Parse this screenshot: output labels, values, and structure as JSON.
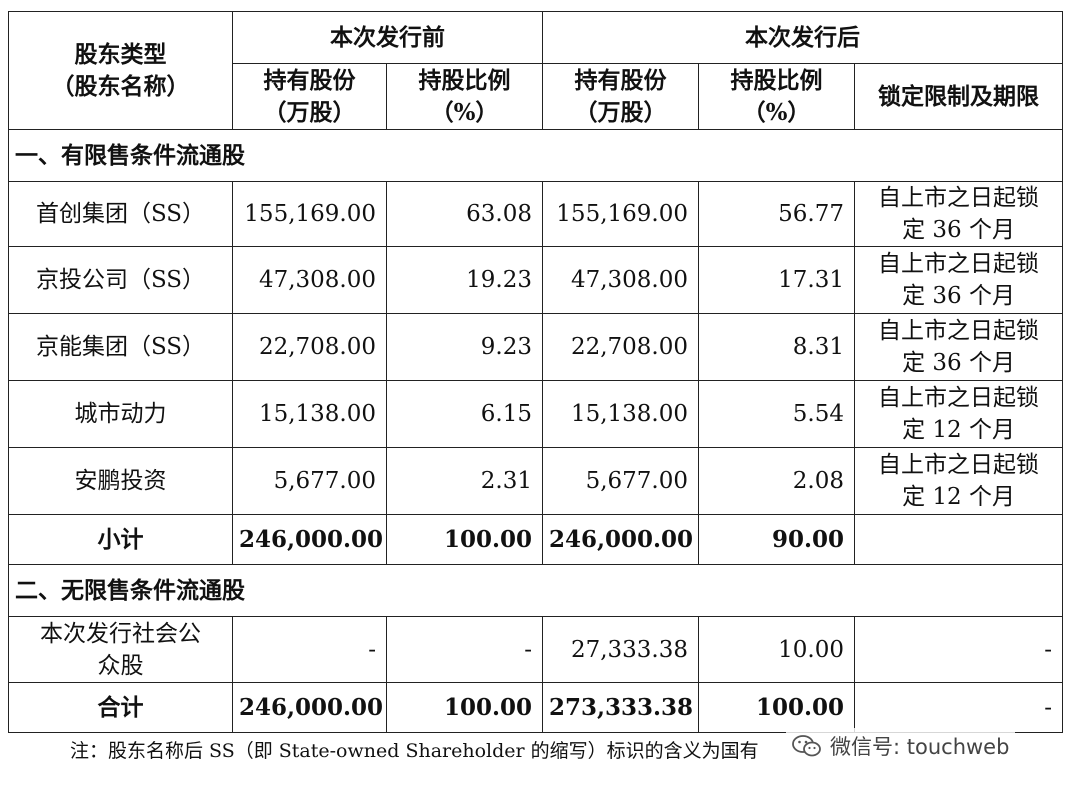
{
  "header": {
    "type_label": "股东类型\n（股东名称）",
    "before": "本次发行前",
    "after": "本次发行后",
    "shares": "持有股份\n（万股）",
    "ratio": "持股比例\n（%）",
    "lock": "锁定限制及期限"
  },
  "section1": "一、有限售条件流通股",
  "rows": [
    {
      "name": "首创集团（SS）",
      "shares_before": "155,169.00",
      "ratio_before": "63.08",
      "shares_after": "155,169.00",
      "ratio_after": "56.77",
      "lock": "自上市之日起锁\n定 36 个月"
    },
    {
      "name": "京投公司（SS）",
      "shares_before": "47,308.00",
      "ratio_before": "19.23",
      "shares_after": "47,308.00",
      "ratio_after": "17.31",
      "lock": "自上市之日起锁\n定 36 个月"
    },
    {
      "name": "京能集团（SS）",
      "shares_before": "22,708.00",
      "ratio_before": "9.23",
      "shares_after": "22,708.00",
      "ratio_after": "8.31",
      "lock": "自上市之日起锁\n定 36 个月"
    },
    {
      "name": "城市动力",
      "shares_before": "15,138.00",
      "ratio_before": "6.15",
      "shares_after": "15,138.00",
      "ratio_after": "5.54",
      "lock": "自上市之日起锁\n定 12 个月"
    },
    {
      "name": "安鹏投资",
      "shares_before": "5,677.00",
      "ratio_before": "2.31",
      "shares_after": "5,677.00",
      "ratio_after": "2.08",
      "lock": "自上市之日起锁\n定 12 个月"
    }
  ],
  "subtotal": {
    "name": "小计",
    "shares_before": "246,000.00",
    "ratio_before": "100.00",
    "shares_after": "246,000.00",
    "ratio_after": "90.00",
    "lock": ""
  },
  "section2": "二、无限售条件流通股",
  "public": {
    "name": "本次发行社会公\n众股",
    "shares_before": "-",
    "ratio_before": "-",
    "shares_after": "27,333.38",
    "ratio_after": "10.00",
    "lock": "-"
  },
  "total": {
    "name": "合计",
    "shares_before": "246,000.00",
    "ratio_before": "100.00",
    "shares_after": "273,333.38",
    "ratio_after": "100.00",
    "lock": "-"
  },
  "note": "注：股东名称后 SS（即 State-owned Shareholder 的缩写）标识的含义为国有",
  "watermark": {
    "text": "微信号: touchweb",
    "icon": "wechat-icon"
  }
}
